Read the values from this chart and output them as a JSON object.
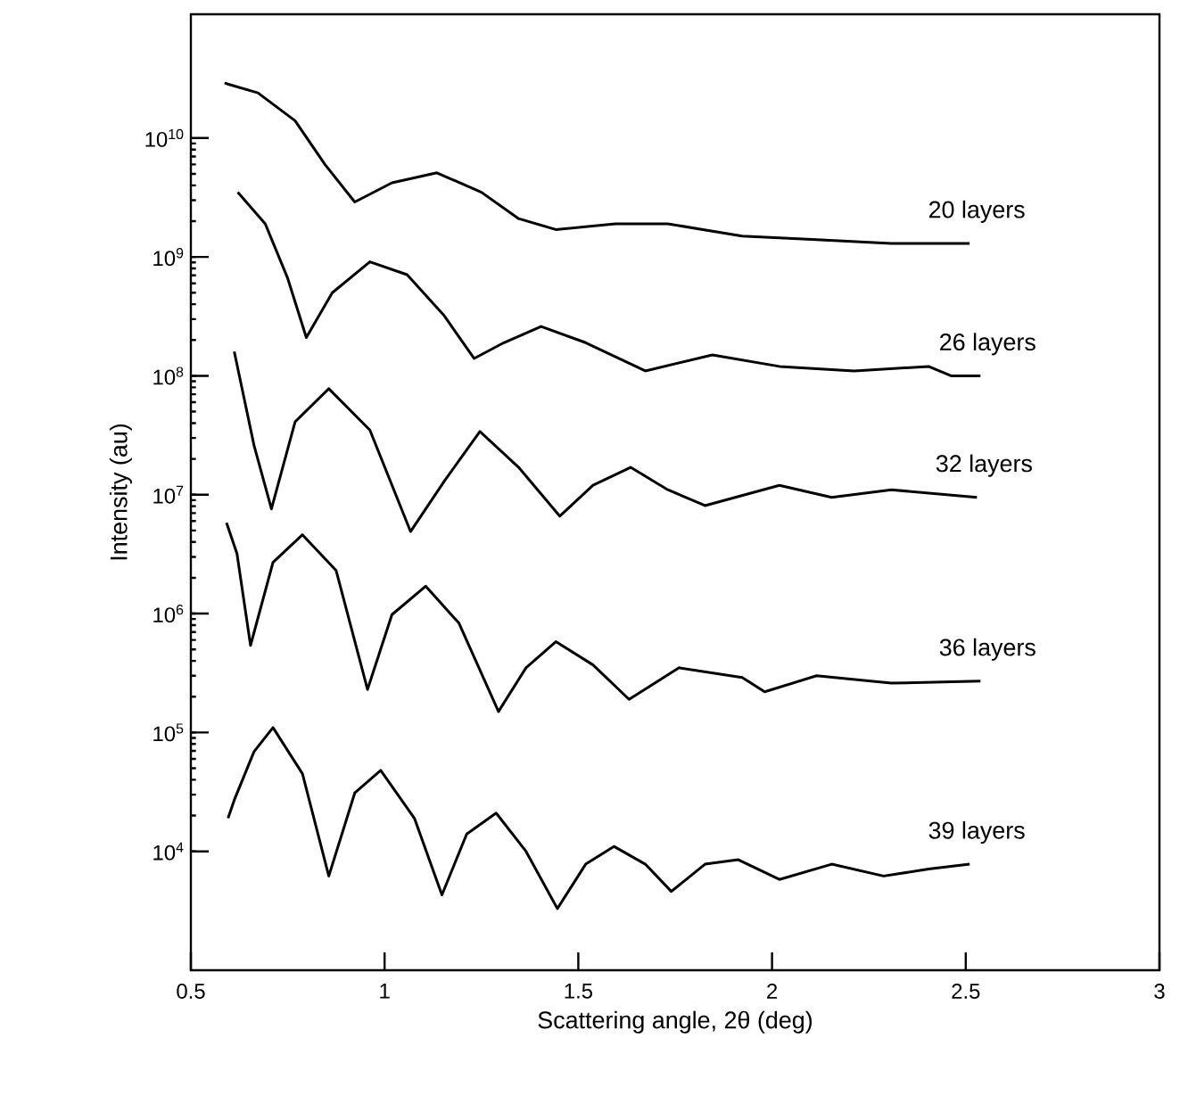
{
  "chart_data": {
    "type": "line",
    "xlabel": "Scattering angle, 2θ (deg)",
    "ylabel": "Intensity (au)",
    "log": "y",
    "xlim": [
      0.5,
      3
    ],
    "ylim": [
      1000,
      110000000000.0
    ],
    "xticks": [
      0.5,
      1,
      1.5,
      2,
      2.5,
      3
    ],
    "yticks": [
      {
        "value": 10000.0,
        "label": "10$^{4}$"
      },
      {
        "value": 100000.0,
        "label": "10$^{5}$"
      },
      {
        "value": 1000000.0,
        "label": "10$^{6}$"
      },
      {
        "value": 10000000.0,
        "label": "10$^{7}$"
      },
      {
        "value": 100000000.0,
        "label": "10$^{8}$"
      },
      {
        "value": 1000000000.0,
        "label": "10$^{9}$"
      },
      {
        "value": 10000000000.0,
        "label": "10$^{10}$"
      }
    ],
    "series": [
      {
        "name": "20 layers",
        "color": "#000000",
        "x": [
          0.587,
          0.673,
          0.769,
          0.846,
          0.923,
          1.019,
          1.135,
          1.25,
          1.346,
          1.442,
          1.596,
          1.731,
          1.923,
          2.115,
          2.308,
          2.51
        ],
        "values": [
          29000000000.0,
          24000000000.0,
          14000000000.0,
          6000000000.0,
          2900000000.0,
          4200000000.0,
          5100000000.0,
          3500000000.0,
          2100000000.0,
          1700000000.0,
          1900000000.0,
          1900000000.0,
          1500000000.0,
          1400000000.0,
          1300000000.0,
          1300000000.0
        ]
      },
      {
        "name": "26 layers",
        "color": "#000000",
        "x": [
          0.621,
          0.692,
          0.75,
          0.798,
          0.865,
          0.962,
          1.058,
          1.154,
          1.231,
          1.308,
          1.404,
          1.519,
          1.673,
          1.846,
          2.019,
          2.212,
          2.404,
          2.462,
          2.538
        ],
        "values": [
          3500000000.0,
          1900000000.0,
          660000000.0,
          210000000.0,
          500000000.0,
          910000000.0,
          710000000.0,
          320000000.0,
          140000000.0,
          190000000.0,
          260000000.0,
          190000000.0,
          110000000.0,
          150000000.0,
          120000000.0,
          110000000.0,
          120000000.0,
          100000000.0,
          100000000.0
        ]
      },
      {
        "name": "32 layers",
        "color": "#000000",
        "x": [
          0.612,
          0.663,
          0.708,
          0.769,
          0.856,
          0.962,
          1.067,
          1.154,
          1.246,
          1.346,
          1.452,
          1.538,
          1.635,
          1.731,
          1.827,
          2.019,
          2.154,
          2.308,
          2.529
        ],
        "values": [
          160000000.0,
          26000000.0,
          7600000.0,
          41000000.0,
          78000000.0,
          35000000.0,
          4900000.0,
          13000000.0,
          34000000.0,
          17000000.0,
          6600000.0,
          12000000.0,
          17000000.0,
          11000000.0,
          8100000.0,
          12000000.0,
          9500000.0,
          11000000.0,
          9500000.0
        ]
      },
      {
        "name": "36 layers",
        "color": "#000000",
        "x": [
          0.592,
          0.619,
          0.654,
          0.712,
          0.788,
          0.875,
          0.956,
          1.019,
          1.106,
          1.192,
          1.294,
          1.365,
          1.442,
          1.538,
          1.631,
          1.76,
          1.923,
          1.981,
          2.115,
          2.308,
          2.538
        ],
        "values": [
          5800000.0,
          3200000.0,
          540000.0,
          2700000.0,
          4600000.0,
          2300000.0,
          230000.0,
          980000.0,
          1700000.0,
          830000.0,
          150000.0,
          350000.0,
          580000.0,
          370000.0,
          190000.0,
          350000.0,
          290000.0,
          220000.0,
          300000.0,
          260000.0,
          270000.0
        ]
      },
      {
        "name": "39 layers",
        "color": "#000000",
        "x": [
          0.596,
          0.612,
          0.663,
          0.712,
          0.788,
          0.856,
          0.923,
          0.99,
          1.077,
          1.148,
          1.212,
          1.288,
          1.365,
          1.446,
          1.519,
          1.592,
          1.673,
          1.74,
          1.827,
          1.913,
          2.019,
          2.154,
          2.288,
          2.404,
          2.51
        ],
        "values": [
          19000.0,
          27000.0,
          69000.0,
          110000.0,
          45000.0,
          6200.0,
          31000.0,
          48000.0,
          19000.0,
          4300.0,
          14000.0,
          21000.0,
          10000.0,
          3300.0,
          7800.0,
          11000.0,
          7800.0,
          4600.0,
          7800.0,
          8500.0,
          5800.0,
          7800.0,
          6200.0,
          7100.0,
          7800.0
        ]
      }
    ]
  }
}
